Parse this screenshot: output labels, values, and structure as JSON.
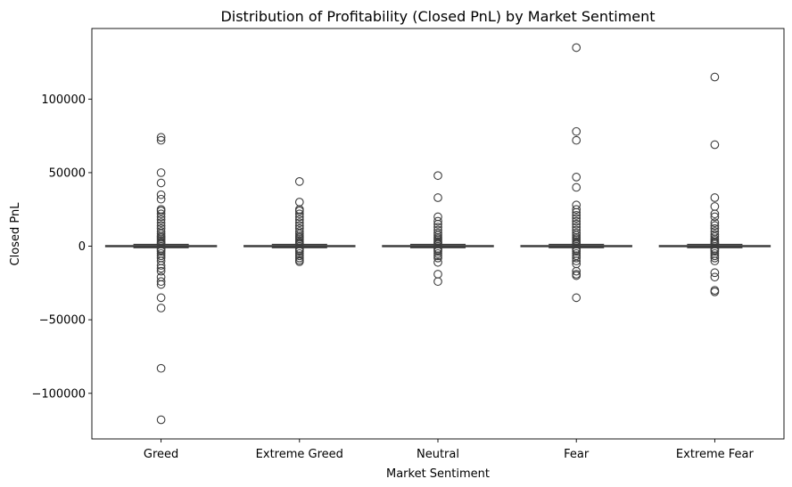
{
  "chart_data": {
    "type": "box",
    "title": "Distribution of Profitability (Closed PnL) by Market Sentiment",
    "xlabel": "Market Sentiment",
    "ylabel": "Closed PnL",
    "ylim": [
      -131000,
      148000
    ],
    "yticks": [
      -100000,
      -50000,
      0,
      50000,
      100000
    ],
    "ytick_labels": [
      "−100000",
      "−50000",
      "0",
      "50000",
      "100000"
    ],
    "grid": false,
    "legend": "none",
    "colors": {
      "box_edge": "#3d3d3d",
      "box_fill": "#ffffff",
      "outlier_edge": "#3d3d3d"
    },
    "categories": [
      "Greed",
      "Extreme Greed",
      "Neutral",
      "Fear",
      "Extreme Fear"
    ],
    "boxes": [
      {
        "category": "Greed",
        "q1": -300,
        "median": 0,
        "q3": 400,
        "whisker_low": -1000,
        "whisker_high": 1200,
        "outliers": [
          74000,
          72000,
          50000,
          43000,
          35000,
          32000,
          25000,
          24000,
          22000,
          20000,
          18000,
          16000,
          14000,
          12000,
          10000,
          8500,
          7000,
          6000,
          5000,
          4000,
          3000,
          2200,
          1600,
          -1600,
          -2500,
          -3500,
          -5000,
          -6500,
          -8000,
          -10000,
          -13000,
          -15000,
          -17000,
          -21000,
          -24000,
          -26000,
          -35000,
          -42000,
          -83000,
          -118000
        ]
      },
      {
        "category": "Extreme Greed",
        "q1": -300,
        "median": 0,
        "q3": 400,
        "whisker_low": -1000,
        "whisker_high": 1200,
        "outliers": [
          44000,
          30000,
          25000,
          24000,
          22000,
          20000,
          18000,
          16000,
          14000,
          12000,
          10000,
          8500,
          7000,
          6000,
          5000,
          4000,
          3000,
          2200,
          1600,
          -1600,
          -2500,
          -3500,
          -5000,
          -6500,
          -8000,
          -9500,
          -10500
        ]
      },
      {
        "category": "Neutral",
        "q1": -300,
        "median": 0,
        "q3": 400,
        "whisker_low": -1000,
        "whisker_high": 1200,
        "outliers": [
          48000,
          33000,
          20000,
          17000,
          15000,
          13000,
          11000,
          9000,
          7500,
          6000,
          5000,
          4000,
          3000,
          2200,
          1600,
          -1600,
          -2500,
          -3500,
          -5000,
          -6500,
          -8000,
          -11000,
          -19000,
          -24000
        ]
      },
      {
        "category": "Fear",
        "q1": -300,
        "median": 0,
        "q3": 400,
        "whisker_low": -1000,
        "whisker_high": 1200,
        "outliers": [
          135000,
          78000,
          72000,
          47000,
          40000,
          28000,
          25000,
          23000,
          21000,
          19000,
          17000,
          15000,
          13000,
          11000,
          9000,
          7500,
          6000,
          5000,
          4000,
          3000,
          2200,
          1600,
          -1600,
          -2500,
          -3500,
          -5000,
          -6500,
          -8000,
          -10000,
          -12000,
          -17000,
          -19000,
          -20000,
          -35000
        ]
      },
      {
        "category": "Extreme Fear",
        "q1": -300,
        "median": 0,
        "q3": 400,
        "whisker_low": -1000,
        "whisker_high": 1200,
        "outliers": [
          115000,
          69000,
          33000,
          27000,
          22000,
          20000,
          16000,
          14000,
          12000,
          10000,
          8000,
          6500,
          5000,
          4000,
          3000,
          2200,
          1600,
          -1600,
          -2500,
          -3500,
          -5000,
          -6500,
          -8000,
          -10000,
          -18000,
          -21000,
          -30000,
          -31000
        ]
      }
    ]
  }
}
